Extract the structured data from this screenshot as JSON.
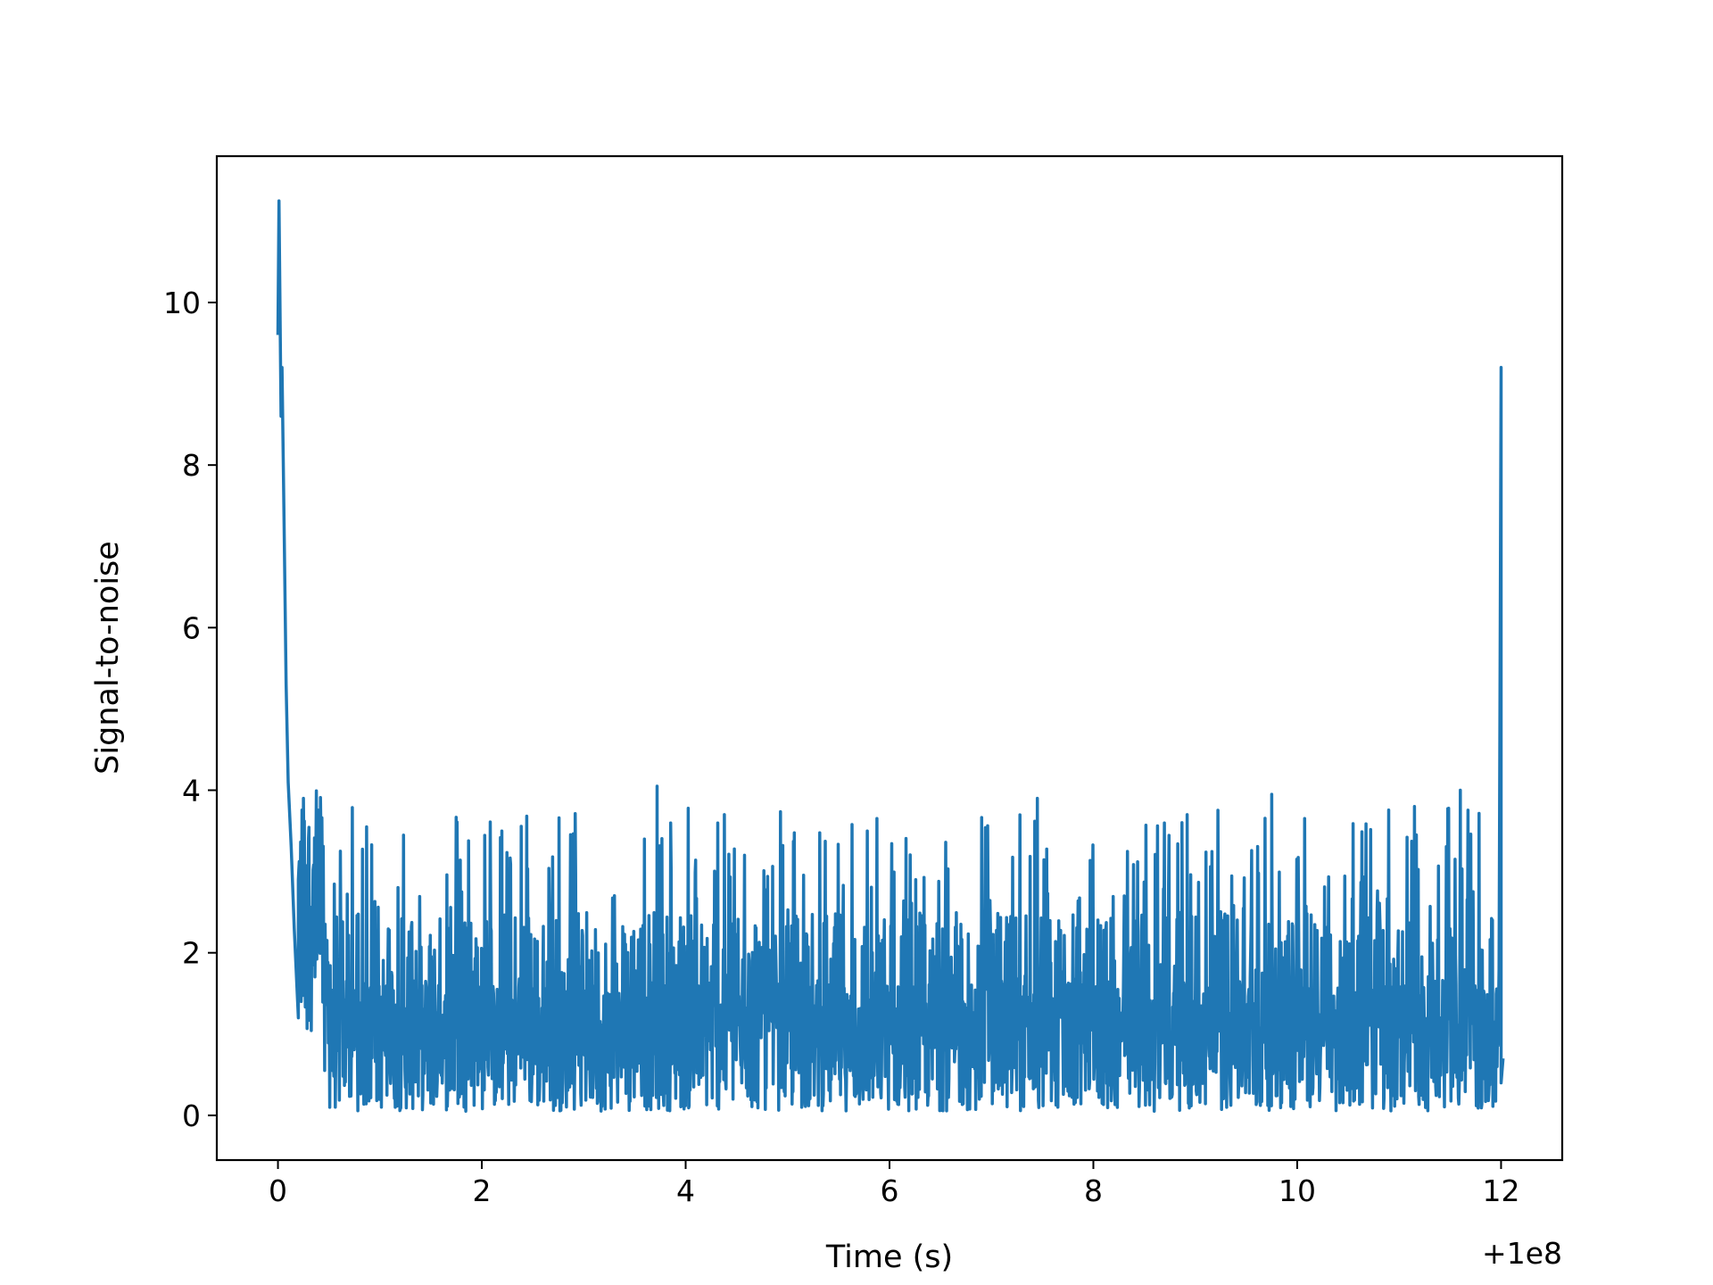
{
  "chart_data": {
    "type": "line",
    "title": "",
    "xlabel": "Time (s)",
    "ylabel": "Signal-to-noise",
    "x_offset_label": "+1e8",
    "xlim": [
      -0.6,
      12.6
    ],
    "ylim": [
      -0.55,
      11.8
    ],
    "xticks": [
      0,
      2,
      4,
      6,
      8,
      10,
      12
    ],
    "xtick_labels": [
      "0",
      "2",
      "4",
      "6",
      "8",
      "10",
      "12"
    ],
    "yticks": [
      0,
      2,
      4,
      6,
      8,
      10
    ],
    "ytick_labels": [
      "0",
      "2",
      "4",
      "6",
      "8",
      "10"
    ],
    "grid": false,
    "legend": "none",
    "colors": {
      "line": "#1f77b4",
      "axes": "#000000",
      "background": "#ffffff"
    },
    "series": [
      {
        "x": [
          0.0,
          0.01,
          0.02,
          0.03,
          0.04,
          0.06,
          0.08,
          0.1,
          0.13,
          0.16,
          0.2,
          0.25,
          0.3,
          0.36,
          0.44,
          0.5,
          0.6,
          0.75,
          0.9,
          1.05,
          1.2,
          1.4,
          1.6,
          1.85,
          2.0,
          2.3,
          2.6,
          2.85,
          3.1,
          3.4,
          3.72,
          3.75,
          3.8,
          4.1,
          4.38,
          4.7,
          5.0,
          5.35,
          5.65,
          5.95,
          6.3,
          6.6,
          6.92,
          7.2,
          7.45,
          7.8,
          8.1,
          8.4,
          8.7,
          8.92,
          9.2,
          9.5,
          9.75,
          9.85,
          10.1,
          10.5,
          10.9,
          11.2,
          11.6,
          11.75,
          11.9,
          11.96,
          11.98,
          12.0,
          12.02
        ],
        "y": [
          9.6,
          11.25,
          10.0,
          8.6,
          9.2,
          7.3,
          5.3,
          4.1,
          3.3,
          2.3,
          1.2,
          3.9,
          2.2,
          0.3,
          3.3,
          1.0,
          2.6,
          0.5,
          2.5,
          1.2,
          3.4,
          0.9,
          2.7,
          1.1,
          3.2,
          0.5,
          3.0,
          1.4,
          2.8,
          0.6,
          4.05,
          1.3,
          2.6,
          0.4,
          3.7,
          1.1,
          2.9,
          0.6,
          3.3,
          1.5,
          2.8,
          0.5,
          2.9,
          1.0,
          3.9,
          0.7,
          2.8,
          1.4,
          2.5,
          3.7,
          0.8,
          2.9,
          3.95,
          1.2,
          2.5,
          0.7,
          2.6,
          1.3,
          4.0,
          0.5,
          1.5,
          0.2,
          1.8,
          9.2,
          0.7
        ]
      }
    ]
  }
}
